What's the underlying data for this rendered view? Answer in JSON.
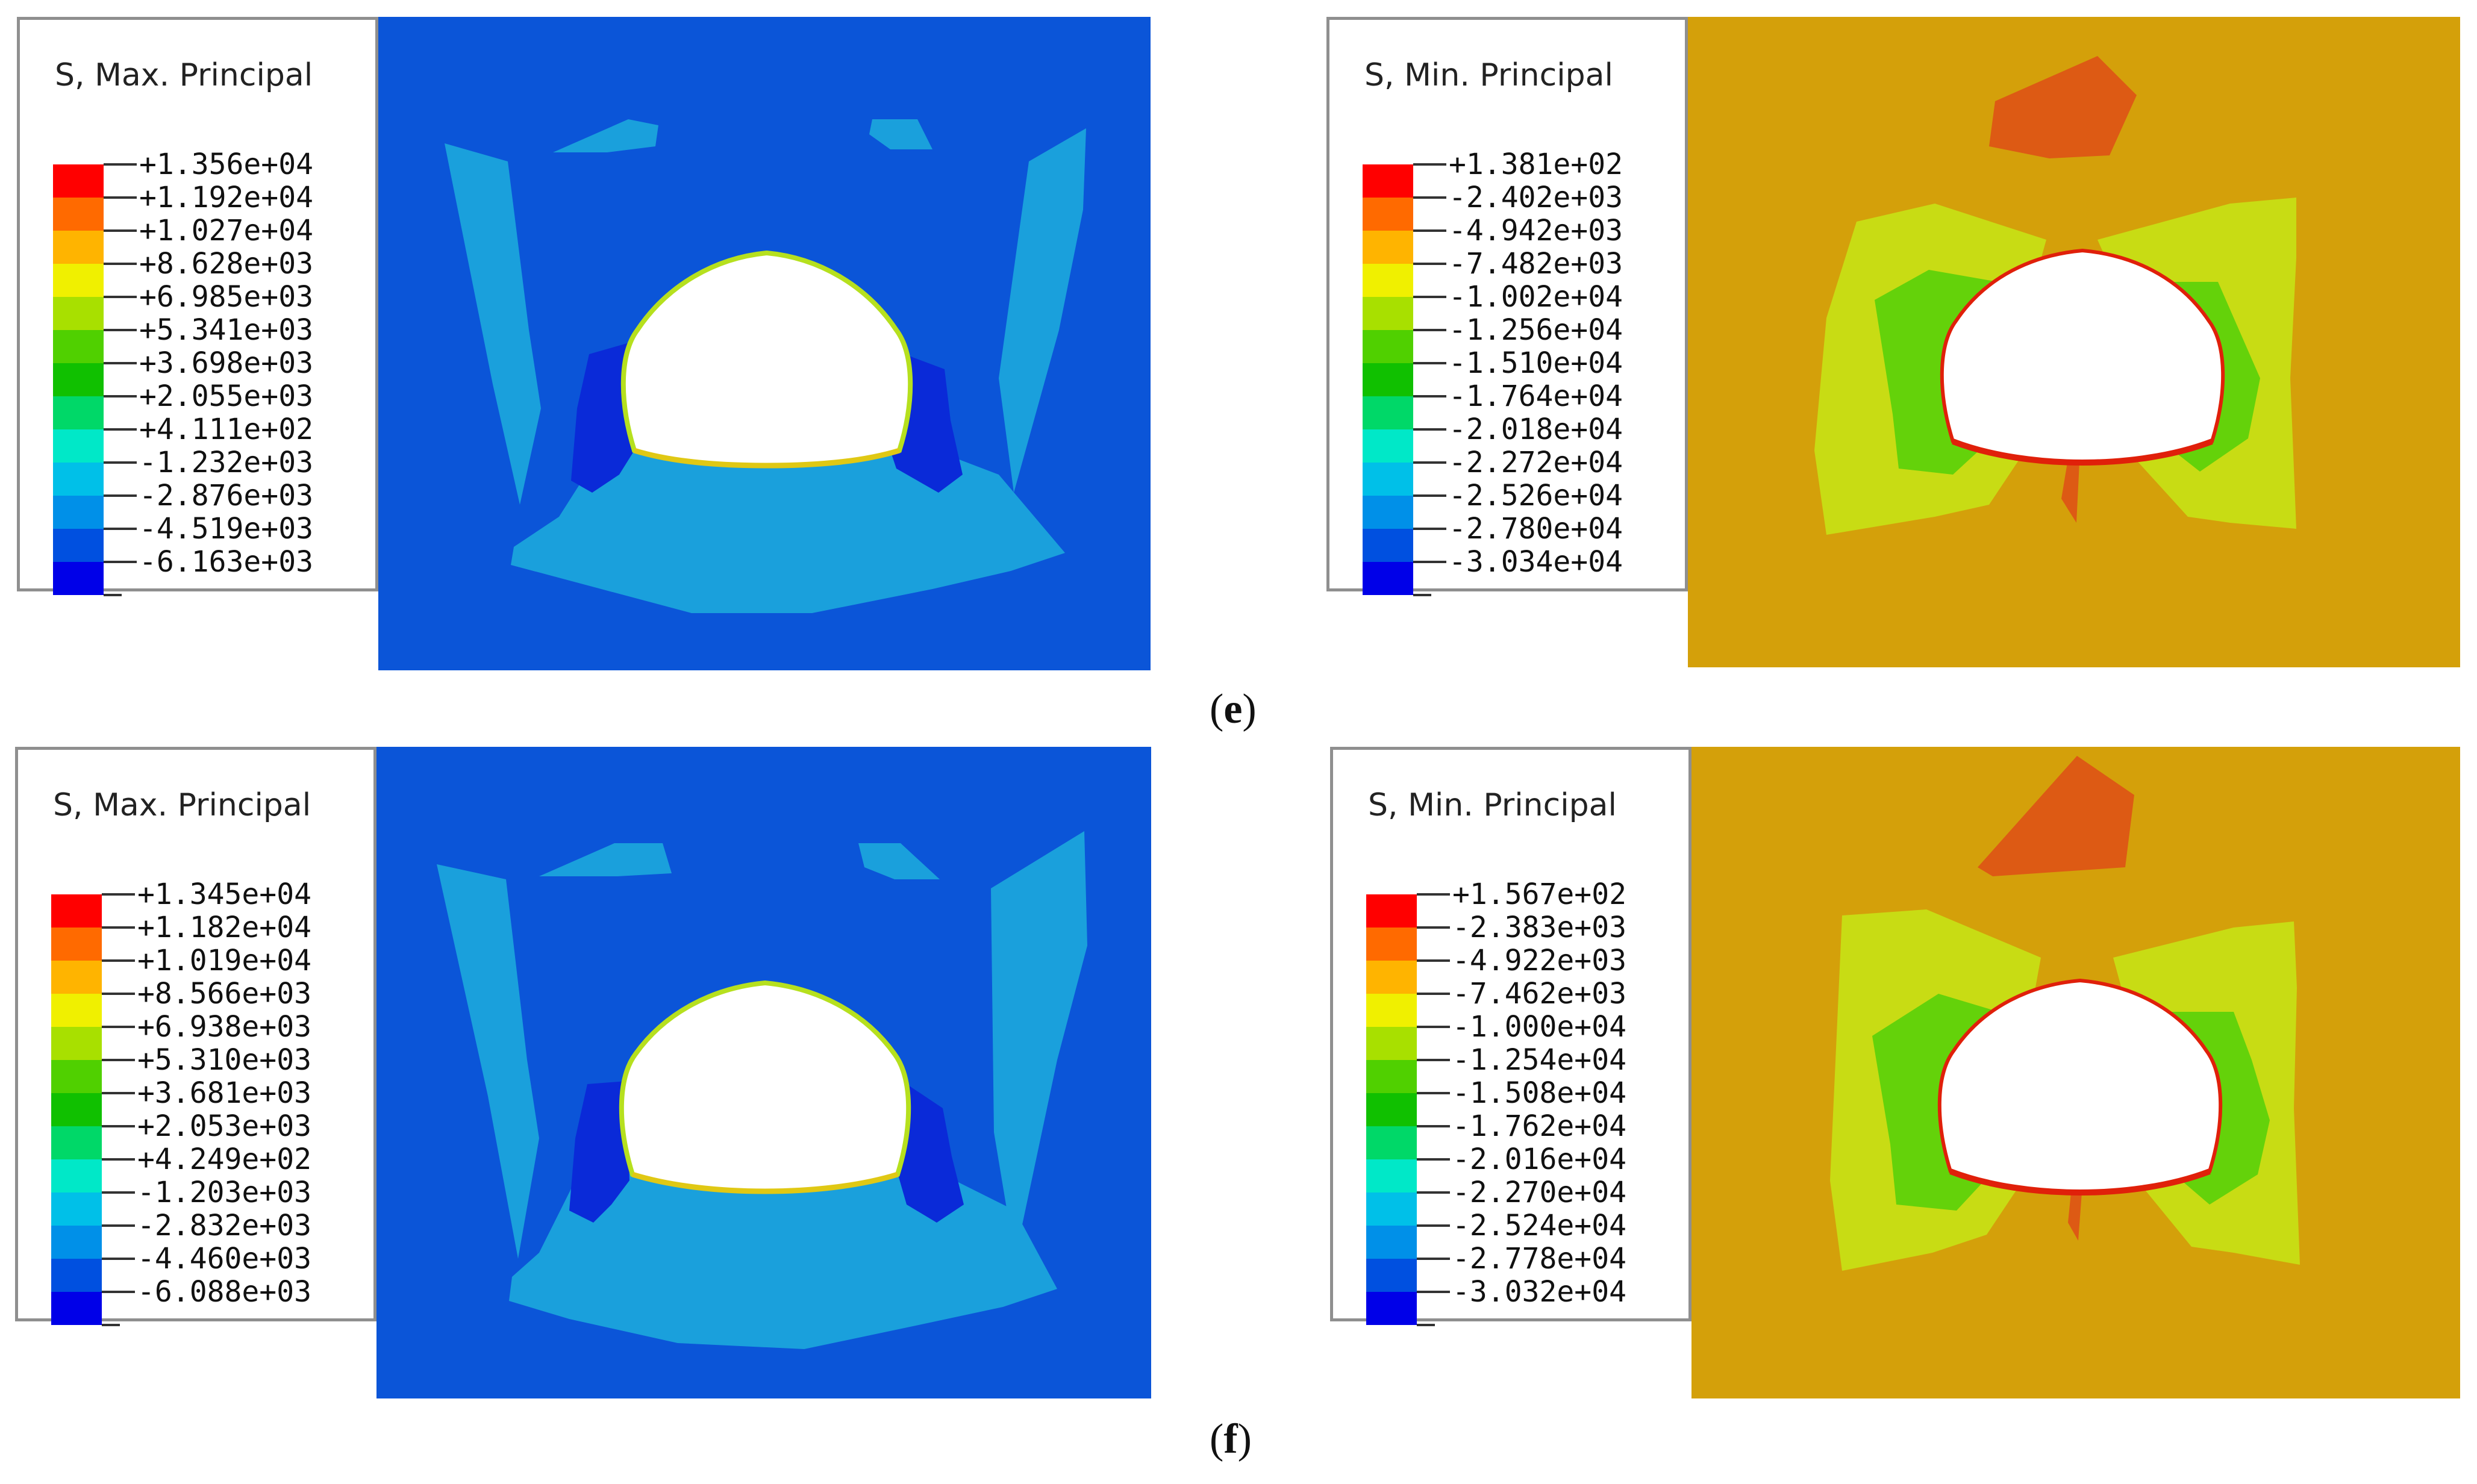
{
  "panels": [
    {
      "id": "e-max",
      "legend_title": "S, Max. Principal",
      "values": [
        "+1.356e+04",
        "+1.192e+04",
        "+1.027e+04",
        "+8.628e+03",
        "+6.985e+03",
        "+5.341e+03",
        "+3.698e+03",
        "+2.055e+03",
        "+4.111e+02",
        "-1.232e+03",
        "-2.876e+03",
        "-4.519e+03",
        "-6.163e+03"
      ]
    },
    {
      "id": "e-min",
      "legend_title": "S, Min. Principal",
      "values": [
        "+1.381e+02",
        "-2.402e+03",
        "-4.942e+03",
        "-7.482e+03",
        "-1.002e+04",
        "-1.256e+04",
        "-1.510e+04",
        "-1.764e+04",
        "-2.018e+04",
        "-2.272e+04",
        "-2.526e+04",
        "-2.780e+04",
        "-3.034e+04"
      ]
    },
    {
      "id": "f-max",
      "legend_title": "S, Max. Principal",
      "values": [
        "+1.345e+04",
        "+1.182e+04",
        "+1.019e+04",
        "+8.566e+03",
        "+6.938e+03",
        "+5.310e+03",
        "+3.681e+03",
        "+2.053e+03",
        "+4.249e+02",
        "-1.203e+03",
        "-2.832e+03",
        "-4.460e+03",
        "-6.088e+03"
      ]
    },
    {
      "id": "f-min",
      "legend_title": "S, Min. Principal",
      "values": [
        "+1.567e+02",
        "-2.383e+03",
        "-4.922e+03",
        "-7.462e+03",
        "-1.000e+04",
        "-1.254e+04",
        "-1.508e+04",
        "-1.762e+04",
        "-2.016e+04",
        "-2.270e+04",
        "-2.524e+04",
        "-2.778e+04",
        "-3.032e+04"
      ]
    }
  ],
  "legend_colors": [
    "#ff0000",
    "#ff6a00",
    "#ffb400",
    "#f0f000",
    "#a8e000",
    "#50d000",
    "#10c000",
    "#00d868",
    "#00e8c8",
    "#00c0e8",
    "#0090e8",
    "#0050e0",
    "#0000e8"
  ],
  "contour_colors": {
    "blue_bg": "#0b55d8",
    "light_blue": "#1aa0dc",
    "dark_blue": "#0a2ad8",
    "orange_bg": "#d4a00a",
    "red_orange": "#dd5a14",
    "yellow_green": "#c8dc14",
    "green": "#64d20a",
    "red_edge": "#e0200a"
  },
  "captions": {
    "e": "e",
    "f": "f"
  }
}
